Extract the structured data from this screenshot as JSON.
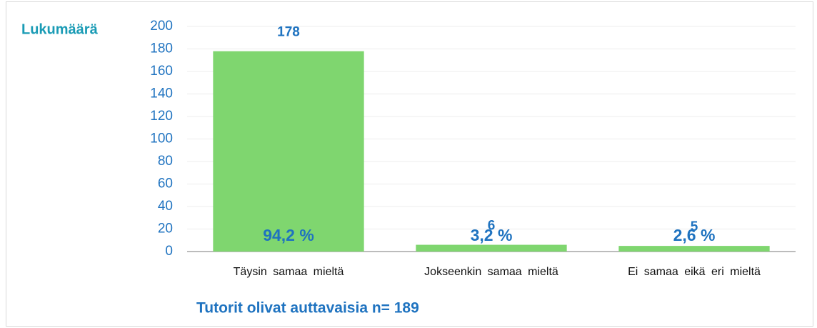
{
  "chart_data": {
    "type": "bar",
    "title": "Tutorit olivat auttavaisia n= 189",
    "y_label": "Lukumäärä",
    "categories": [
      "Täysin samaa mieltä",
      "Jokseenkin samaa mieltä",
      "Ei samaa eikä eri mieltä"
    ],
    "values": [
      178,
      6,
      5
    ],
    "percent_labels": [
      "94,2 %",
      "3,2 %",
      "2,6 %"
    ],
    "color": "#7fd66f",
    "ylim": [
      0,
      200
    ],
    "yticks": [
      0,
      20,
      40,
      60,
      80,
      100,
      120,
      140,
      160,
      180,
      200
    ],
    "grid": true
  }
}
